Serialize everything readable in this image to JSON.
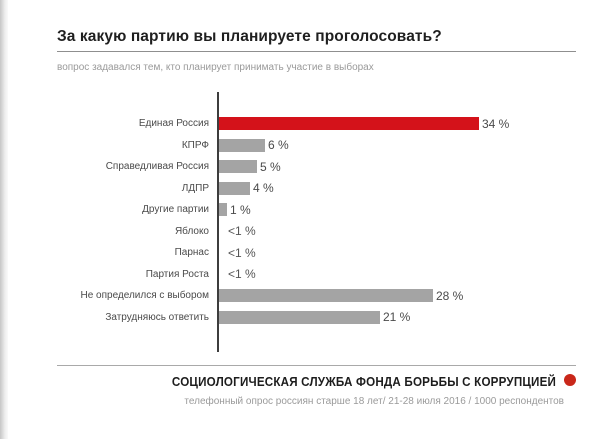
{
  "chart_data": {
    "type": "bar",
    "orientation": "horizontal",
    "title": "За какую партию вы планируете проголосовать?",
    "subtitle": "вопрос задавался тем, кто планирует принимать участие в выборах",
    "categories": [
      "Единая Россия",
      "КПРФ",
      "Справедливая Россия",
      "ЛДПР",
      "Другие партии",
      "Яблоко",
      "Парнас",
      "Партия Роста",
      "Не определился с выбором",
      "Затрудняюсь ответить"
    ],
    "values": [
      34,
      6,
      5,
      4,
      1,
      0.5,
      0.5,
      0.5,
      28,
      21
    ],
    "value_labels": [
      "34 %",
      "6 %",
      "5 %",
      "4 %",
      "1 %",
      "<1 %",
      "<1 %",
      "<1 %",
      "28 %",
      "21 %"
    ],
    "xlim": [
      0,
      34
    ],
    "grid": false,
    "legend": null,
    "highlight_category": "Единая Россия",
    "rows": [
      {
        "label": "Единая Россия",
        "value": 34,
        "display": "34 %",
        "highlight": true
      },
      {
        "label": "КПРФ",
        "value": 6,
        "display": "6 %"
      },
      {
        "label": "Справедливая Россия",
        "value": 5,
        "display": "5 %"
      },
      {
        "label": "ЛДПР",
        "value": 4,
        "display": "4 %"
      },
      {
        "label": "Другие партии",
        "value": 1,
        "display": "1 %"
      },
      {
        "label": "Яблоко",
        "value": 0.5,
        "display": "<1 %",
        "no_bar": true
      },
      {
        "label": "Парнас",
        "value": 0.5,
        "display": "<1 %",
        "no_bar": true
      },
      {
        "label": "Партия Роста",
        "value": 0.5,
        "display": "<1 %",
        "no_bar": true
      },
      {
        "label": "Не определился с выбором",
        "value": 28,
        "display": "28 %"
      },
      {
        "label": "Затрудняюсь ответить",
        "value": 21,
        "display": "21 %"
      }
    ]
  },
  "footer": {
    "org": "СОЦИОЛОГИЧЕСКАЯ СЛУЖБА ФОНДА БОРЬБЫ С КОРРУПЦИЕЙ",
    "details": "телефонный опрос россиян старше 18 лет/ 21-28 июля 2016 / 1000 респондентов"
  },
  "colors": {
    "highlight_red": "#d4121a",
    "bar_gray": "#a4a4a4",
    "dot_red": "#c9271a"
  }
}
